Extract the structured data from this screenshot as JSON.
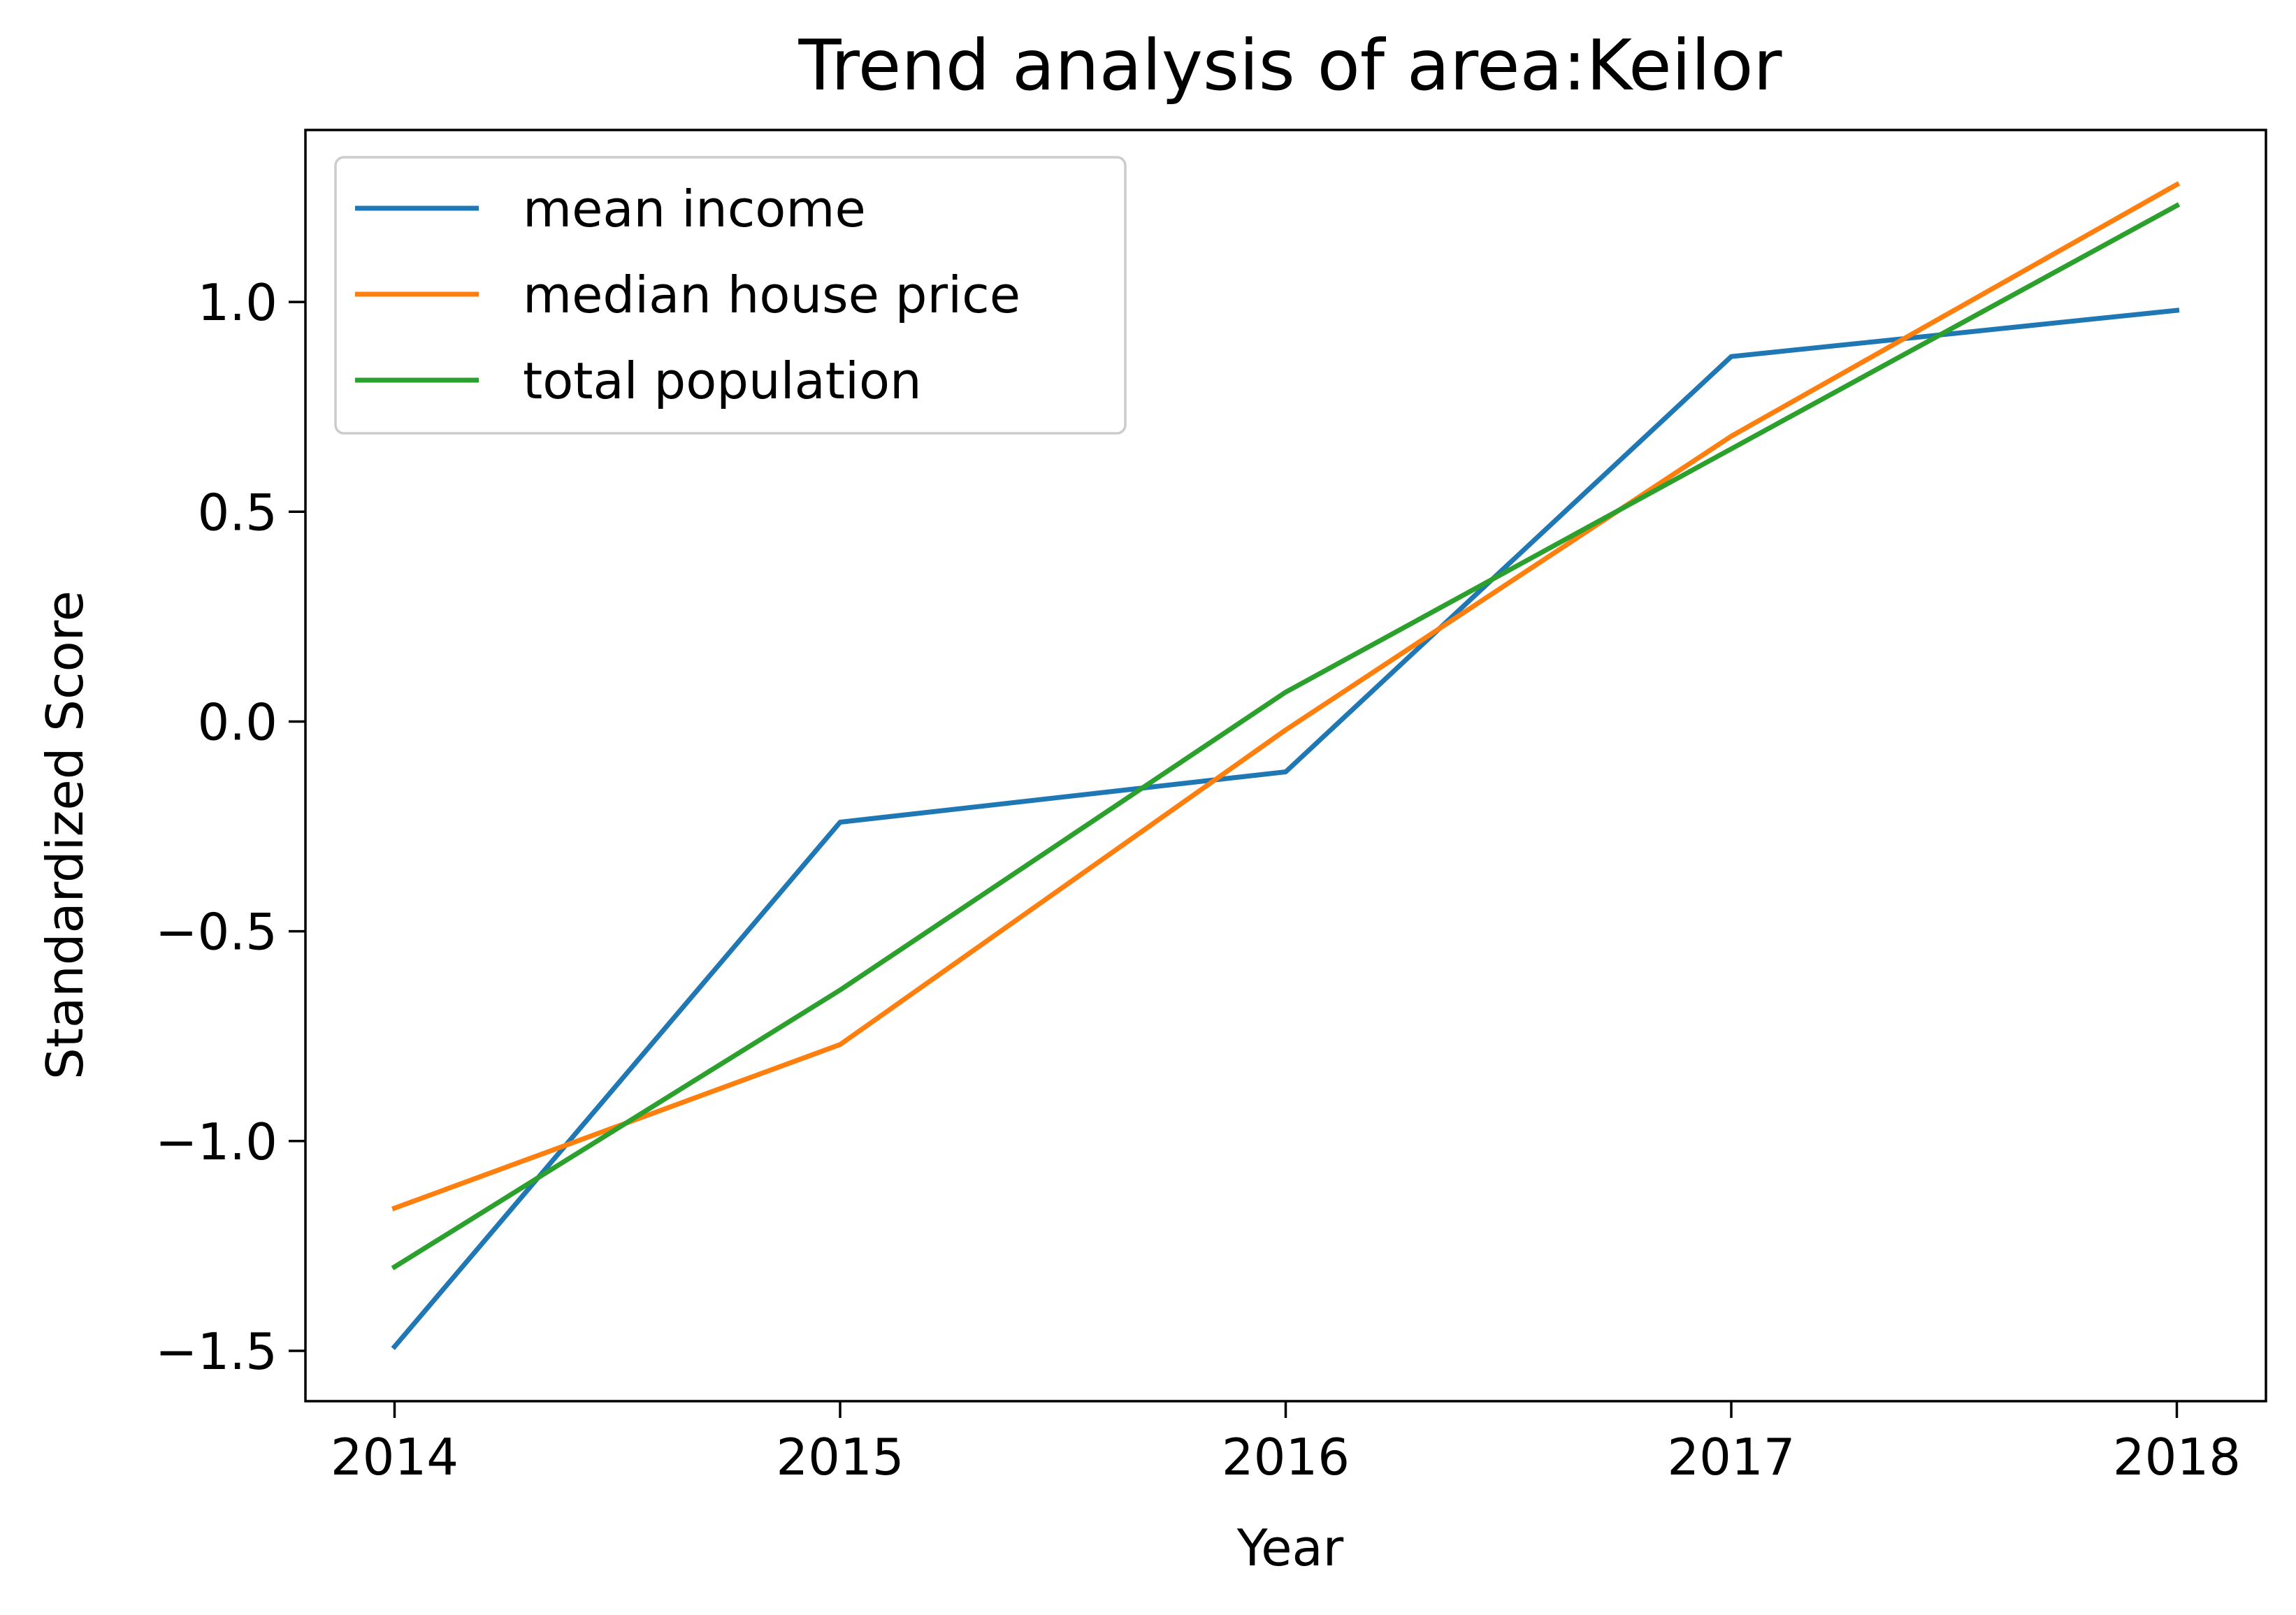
{
  "chart_data": {
    "type": "line",
    "title": "Trend analysis of area:Keilor",
    "xlabel": "Year",
    "ylabel": "Standardized Score",
    "x": [
      2014,
      2015,
      2016,
      2017,
      2018
    ],
    "x_tick_labels": [
      "2014",
      "2015",
      "2016",
      "2017",
      "2018"
    ],
    "y_ticks": [
      -1.5,
      -1.0,
      -0.5,
      0.0,
      0.5,
      1.0
    ],
    "y_tick_labels": [
      "−1.5",
      "−1.0",
      "−0.5",
      "0.0",
      "0.5",
      "1.0"
    ],
    "xlim": [
      2013.8,
      2018.2
    ],
    "ylim": [
      -1.62,
      1.41
    ],
    "grid": false,
    "legend_position": "upper-left",
    "series": [
      {
        "name": "mean income",
        "color": "#1f77b4",
        "values": [
          -1.49,
          -0.24,
          -0.12,
          0.87,
          0.98
        ]
      },
      {
        "name": "median house price",
        "color": "#ff7f0e",
        "values": [
          -1.16,
          -0.77,
          -0.02,
          0.68,
          1.28
        ]
      },
      {
        "name": "total population",
        "color": "#2ca02c",
        "values": [
          -1.3,
          -0.64,
          0.07,
          0.65,
          1.23
        ]
      }
    ]
  }
}
